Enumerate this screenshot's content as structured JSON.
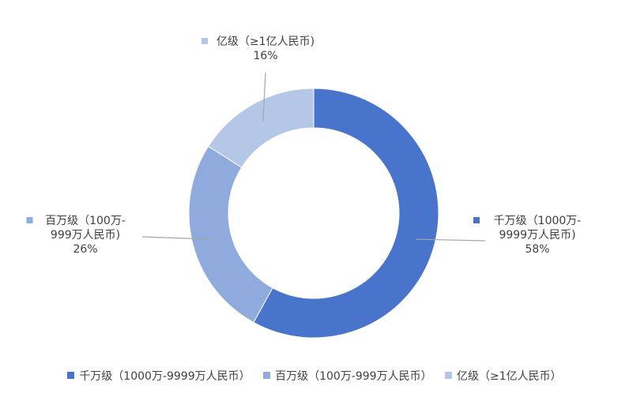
{
  "chart_data": {
    "type": "pie",
    "variant": "donut",
    "title": "",
    "legend_position": "bottom",
    "slices": [
      {
        "label": "千万级（1000万-9999万人民币）",
        "label_lines": [
          "千万级（1000万-",
          "9999万人民币)"
        ],
        "value": 58,
        "value_label": "58%",
        "color": "#4874CB"
      },
      {
        "label": "百万级（100万-999万人民币）",
        "label_lines": [
          "百万级（100万-",
          "999万人民币)"
        ],
        "value": 26,
        "value_label": "26%",
        "color": "#8FAADC"
      },
      {
        "label": "亿级（≥1亿人民币）",
        "label_lines": [
          "亿级（≥1亿人民币)"
        ],
        "value": 16,
        "value_label": "16%",
        "color": "#B4C7E7"
      }
    ]
  }
}
